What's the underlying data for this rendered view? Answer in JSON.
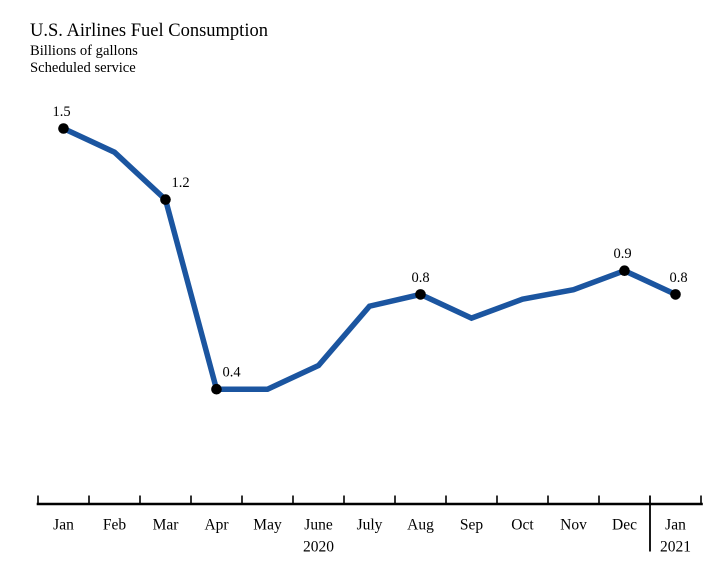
{
  "chart_data": {
    "type": "line",
    "title": "U.S. Airlines Fuel Consumption",
    "subtitle": "Billions of gallons",
    "note": "Scheduled service",
    "categories": [
      "Jan",
      "Feb",
      "Mar",
      "Apr",
      "May",
      "June",
      "July",
      "Aug",
      "Sep",
      "Oct",
      "Nov",
      "Dec",
      "Jan"
    ],
    "values": [
      1.5,
      1.4,
      1.2,
      0.4,
      0.4,
      0.5,
      0.75,
      0.8,
      0.7,
      0.78,
      0.82,
      0.9,
      0.8
    ],
    "labeled_points": [
      {
        "index": 0,
        "label": "1.5"
      },
      {
        "index": 2,
        "label": "1.2"
      },
      {
        "index": 3,
        "label": "0.4"
      },
      {
        "index": 7,
        "label": "0.8"
      },
      {
        "index": 11,
        "label": "0.9"
      },
      {
        "index": 12,
        "label": "0.8"
      }
    ],
    "year_labels": [
      {
        "text": "2020",
        "index": 5
      },
      {
        "text": "2021",
        "index": 12
      }
    ],
    "year_separator_tick_index": 12,
    "xlabel": "",
    "ylabel": "Billions of gallons",
    "ylim": [
      0,
      1.6
    ],
    "grid": false,
    "legend": false,
    "line_color": "#1b55a0",
    "marker_color": "#000000",
    "axis_color": "#000000",
    "text_color": "#000000",
    "marker_style": "filled-circle"
  }
}
